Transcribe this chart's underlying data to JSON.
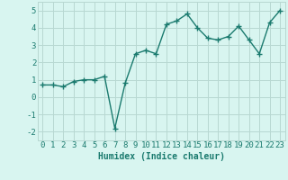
{
  "x": [
    0,
    1,
    2,
    3,
    4,
    5,
    6,
    7,
    8,
    9,
    10,
    11,
    12,
    13,
    14,
    15,
    16,
    17,
    18,
    19,
    20,
    21,
    22,
    23
  ],
  "y": [
    0.7,
    0.7,
    0.6,
    0.9,
    1.0,
    1.0,
    1.2,
    -1.8,
    0.8,
    2.5,
    2.7,
    2.5,
    4.2,
    4.4,
    4.8,
    4.0,
    3.4,
    3.3,
    3.5,
    4.1,
    3.3,
    2.5,
    4.3,
    5.0
  ],
  "line_color": "#1a7a6e",
  "marker": "+",
  "marker_size": 4,
  "bg_color": "#d8f5f0",
  "grid_color": "#b8d8d2",
  "xlabel": "Humidex (Indice chaleur)",
  "xlim": [
    -0.5,
    23.5
  ],
  "ylim": [
    -2.5,
    5.5
  ],
  "yticks": [
    -2,
    -1,
    0,
    1,
    2,
    3,
    4,
    5
  ],
  "xticks": [
    0,
    1,
    2,
    3,
    4,
    5,
    6,
    7,
    8,
    9,
    10,
    11,
    12,
    13,
    14,
    15,
    16,
    17,
    18,
    19,
    20,
    21,
    22,
    23
  ],
  "xlabel_fontsize": 7,
  "tick_fontsize": 6.5,
  "line_width": 1.0,
  "marker_edge_width": 1.0
}
